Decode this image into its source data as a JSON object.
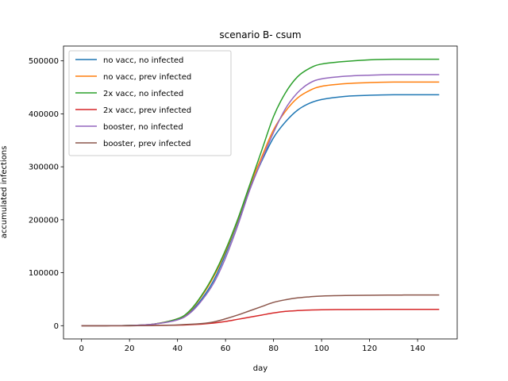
{
  "chart_data": {
    "type": "line",
    "title": "scenario B- csum",
    "xlabel": "day",
    "ylabel": "accumulated infections",
    "xlim": [
      -7.5,
      156.5
    ],
    "ylim": [
      -25000,
      528000
    ],
    "xticks": [
      0,
      20,
      40,
      60,
      80,
      100,
      120,
      140
    ],
    "yticks": [
      0,
      100000,
      200000,
      300000,
      400000,
      500000
    ],
    "grid": false,
    "legend_position": "upper-left",
    "series": [
      {
        "name": "no vacc, no infected",
        "color": "#1f77b4",
        "points": [
          [
            0,
            0
          ],
          [
            10,
            0
          ],
          [
            20,
            500
          ],
          [
            30,
            3000
          ],
          [
            40,
            12000
          ],
          [
            45,
            25000
          ],
          [
            50,
            50000
          ],
          [
            55,
            85000
          ],
          [
            60,
            135000
          ],
          [
            65,
            195000
          ],
          [
            70,
            258000
          ],
          [
            75,
            310000
          ],
          [
            80,
            355000
          ],
          [
            85,
            385000
          ],
          [
            90,
            407000
          ],
          [
            95,
            420000
          ],
          [
            100,
            427000
          ],
          [
            110,
            433000
          ],
          [
            120,
            435000
          ],
          [
            130,
            436000
          ],
          [
            140,
            436000
          ],
          [
            149,
            436000
          ]
        ]
      },
      {
        "name": "no vacc, prev infected",
        "color": "#ff7f0e",
        "points": [
          [
            0,
            0
          ],
          [
            10,
            0
          ],
          [
            20,
            500
          ],
          [
            30,
            3000
          ],
          [
            40,
            13000
          ],
          [
            45,
            27000
          ],
          [
            50,
            55000
          ],
          [
            55,
            92000
          ],
          [
            60,
            140000
          ],
          [
            65,
            198000
          ],
          [
            70,
            263000
          ],
          [
            75,
            318000
          ],
          [
            80,
            370000
          ],
          [
            85,
            405000
          ],
          [
            90,
            430000
          ],
          [
            95,
            444000
          ],
          [
            100,
            452000
          ],
          [
            110,
            457000
          ],
          [
            120,
            459000
          ],
          [
            130,
            460000
          ],
          [
            140,
            460000
          ],
          [
            149,
            460000
          ]
        ]
      },
      {
        "name": "2x vacc, no infected",
        "color": "#2ca02c",
        "points": [
          [
            0,
            0
          ],
          [
            10,
            0
          ],
          [
            20,
            500
          ],
          [
            30,
            3000
          ],
          [
            40,
            13000
          ],
          [
            45,
            28000
          ],
          [
            50,
            57000
          ],
          [
            55,
            95000
          ],
          [
            60,
            143000
          ],
          [
            65,
            200000
          ],
          [
            70,
            265000
          ],
          [
            75,
            330000
          ],
          [
            80,
            395000
          ],
          [
            85,
            440000
          ],
          [
            90,
            470000
          ],
          [
            95,
            486000
          ],
          [
            100,
            494000
          ],
          [
            110,
            499000
          ],
          [
            120,
            502000
          ],
          [
            130,
            503000
          ],
          [
            140,
            503000
          ],
          [
            149,
            503000
          ]
        ]
      },
      {
        "name": "2x vacc, prev infected",
        "color": "#d62728",
        "points": [
          [
            0,
            0
          ],
          [
            10,
            0
          ],
          [
            20,
            0
          ],
          [
            30,
            500
          ],
          [
            40,
            1000
          ],
          [
            50,
            3000
          ],
          [
            55,
            5000
          ],
          [
            60,
            8000
          ],
          [
            65,
            12000
          ],
          [
            70,
            16000
          ],
          [
            75,
            20000
          ],
          [
            80,
            24000
          ],
          [
            85,
            27000
          ],
          [
            90,
            28500
          ],
          [
            95,
            29500
          ],
          [
            100,
            30000
          ],
          [
            110,
            30500
          ],
          [
            120,
            30700
          ],
          [
            130,
            30800
          ],
          [
            140,
            30800
          ],
          [
            149,
            30800
          ]
        ]
      },
      {
        "name": "booster, no infected",
        "color": "#9467bd",
        "points": [
          [
            0,
            0
          ],
          [
            10,
            0
          ],
          [
            20,
            500
          ],
          [
            30,
            3000
          ],
          [
            40,
            11000
          ],
          [
            45,
            23000
          ],
          [
            50,
            47000
          ],
          [
            55,
            80000
          ],
          [
            60,
            128000
          ],
          [
            65,
            188000
          ],
          [
            70,
            255000
          ],
          [
            75,
            312000
          ],
          [
            80,
            365000
          ],
          [
            85,
            410000
          ],
          [
            90,
            440000
          ],
          [
            95,
            458000
          ],
          [
            100,
            466000
          ],
          [
            110,
            471000
          ],
          [
            120,
            473000
          ],
          [
            130,
            474000
          ],
          [
            140,
            474000
          ],
          [
            149,
            474000
          ]
        ]
      },
      {
        "name": "booster, prev infected",
        "color": "#8c564b",
        "points": [
          [
            0,
            0
          ],
          [
            10,
            0
          ],
          [
            20,
            0
          ],
          [
            30,
            500
          ],
          [
            40,
            1500
          ],
          [
            50,
            4000
          ],
          [
            55,
            7000
          ],
          [
            60,
            13000
          ],
          [
            65,
            20000
          ],
          [
            70,
            28000
          ],
          [
            75,
            36000
          ],
          [
            80,
            44000
          ],
          [
            85,
            49000
          ],
          [
            90,
            52500
          ],
          [
            95,
            54500
          ],
          [
            100,
            56000
          ],
          [
            110,
            57000
          ],
          [
            120,
            57500
          ],
          [
            130,
            57800
          ],
          [
            140,
            58000
          ],
          [
            149,
            58000
          ]
        ]
      }
    ]
  }
}
